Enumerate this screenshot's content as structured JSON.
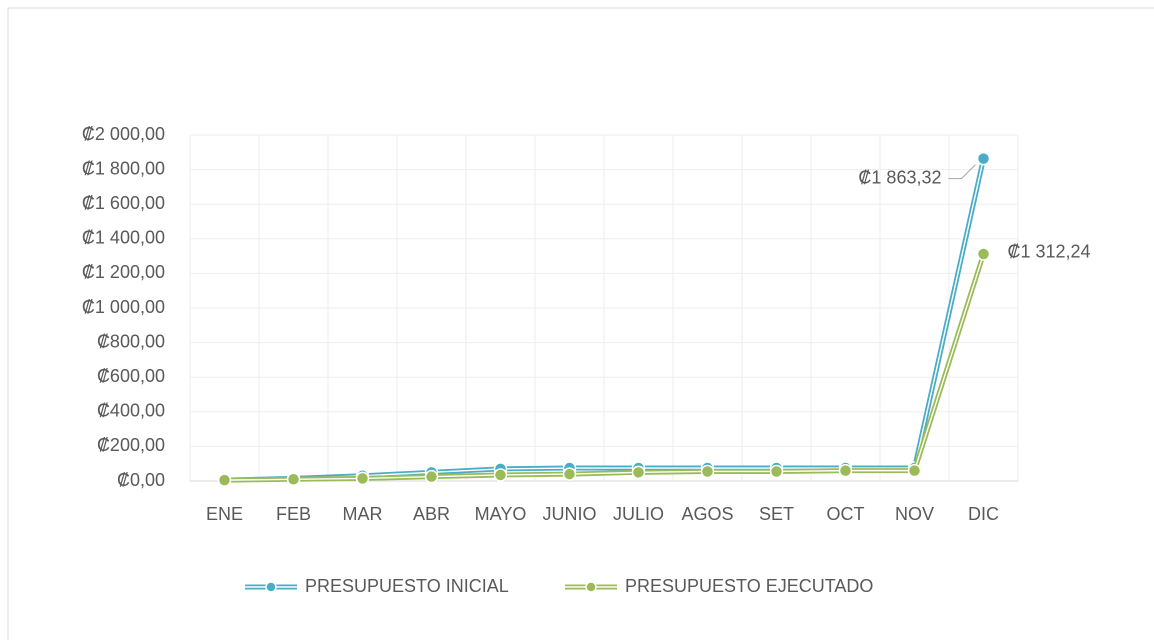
{
  "chart_data": {
    "type": "line",
    "categories": [
      "ENE",
      "FEB",
      "MAR",
      "ABR",
      "MAYO",
      "JUNIO",
      "JULIO",
      "AGOS",
      "SET",
      "OCT",
      "NOV",
      "DIC"
    ],
    "series": [
      {
        "name": "PRESUPUESTO INICIAL",
        "color": "#4bacc6",
        "values": [
          5,
          15,
          30,
          50,
          70,
          75,
          75,
          75,
          75,
          75,
          75,
          1863.32
        ],
        "value_labels": [
          null,
          null,
          null,
          null,
          null,
          null,
          null,
          null,
          null,
          null,
          null,
          "₡1 863,32"
        ]
      },
      {
        "name": "PRESUPUESTO EJECUTADO",
        "color": "#9bbb59",
        "values": [
          5,
          10,
          15,
          25,
          35,
          40,
          50,
          55,
          55,
          60,
          60,
          1312.24
        ],
        "value_labels": [
          null,
          null,
          null,
          null,
          null,
          null,
          null,
          null,
          null,
          null,
          null,
          "₡1 312,24"
        ]
      }
    ],
    "ylim": [
      0,
      2000
    ],
    "yticks": [
      {
        "value": 0,
        "label": "₡0,00"
      },
      {
        "value": 200,
        "label": "₡200,00"
      },
      {
        "value": 400,
        "label": "₡400,00"
      },
      {
        "value": 600,
        "label": "₡600,00"
      },
      {
        "value": 800,
        "label": "₡800,00"
      },
      {
        "value": 1000,
        "label": "₡1 000,00"
      },
      {
        "value": 1200,
        "label": "₡1 200,00"
      },
      {
        "value": 1400,
        "label": "₡1 400,00"
      },
      {
        "value": 1600,
        "label": "₡1 600,00"
      },
      {
        "value": 1800,
        "label": "₡1 800,00"
      },
      {
        "value": 2000,
        "label": "₡2 000,00"
      }
    ],
    "grid": true,
    "legend": "bottom"
  }
}
